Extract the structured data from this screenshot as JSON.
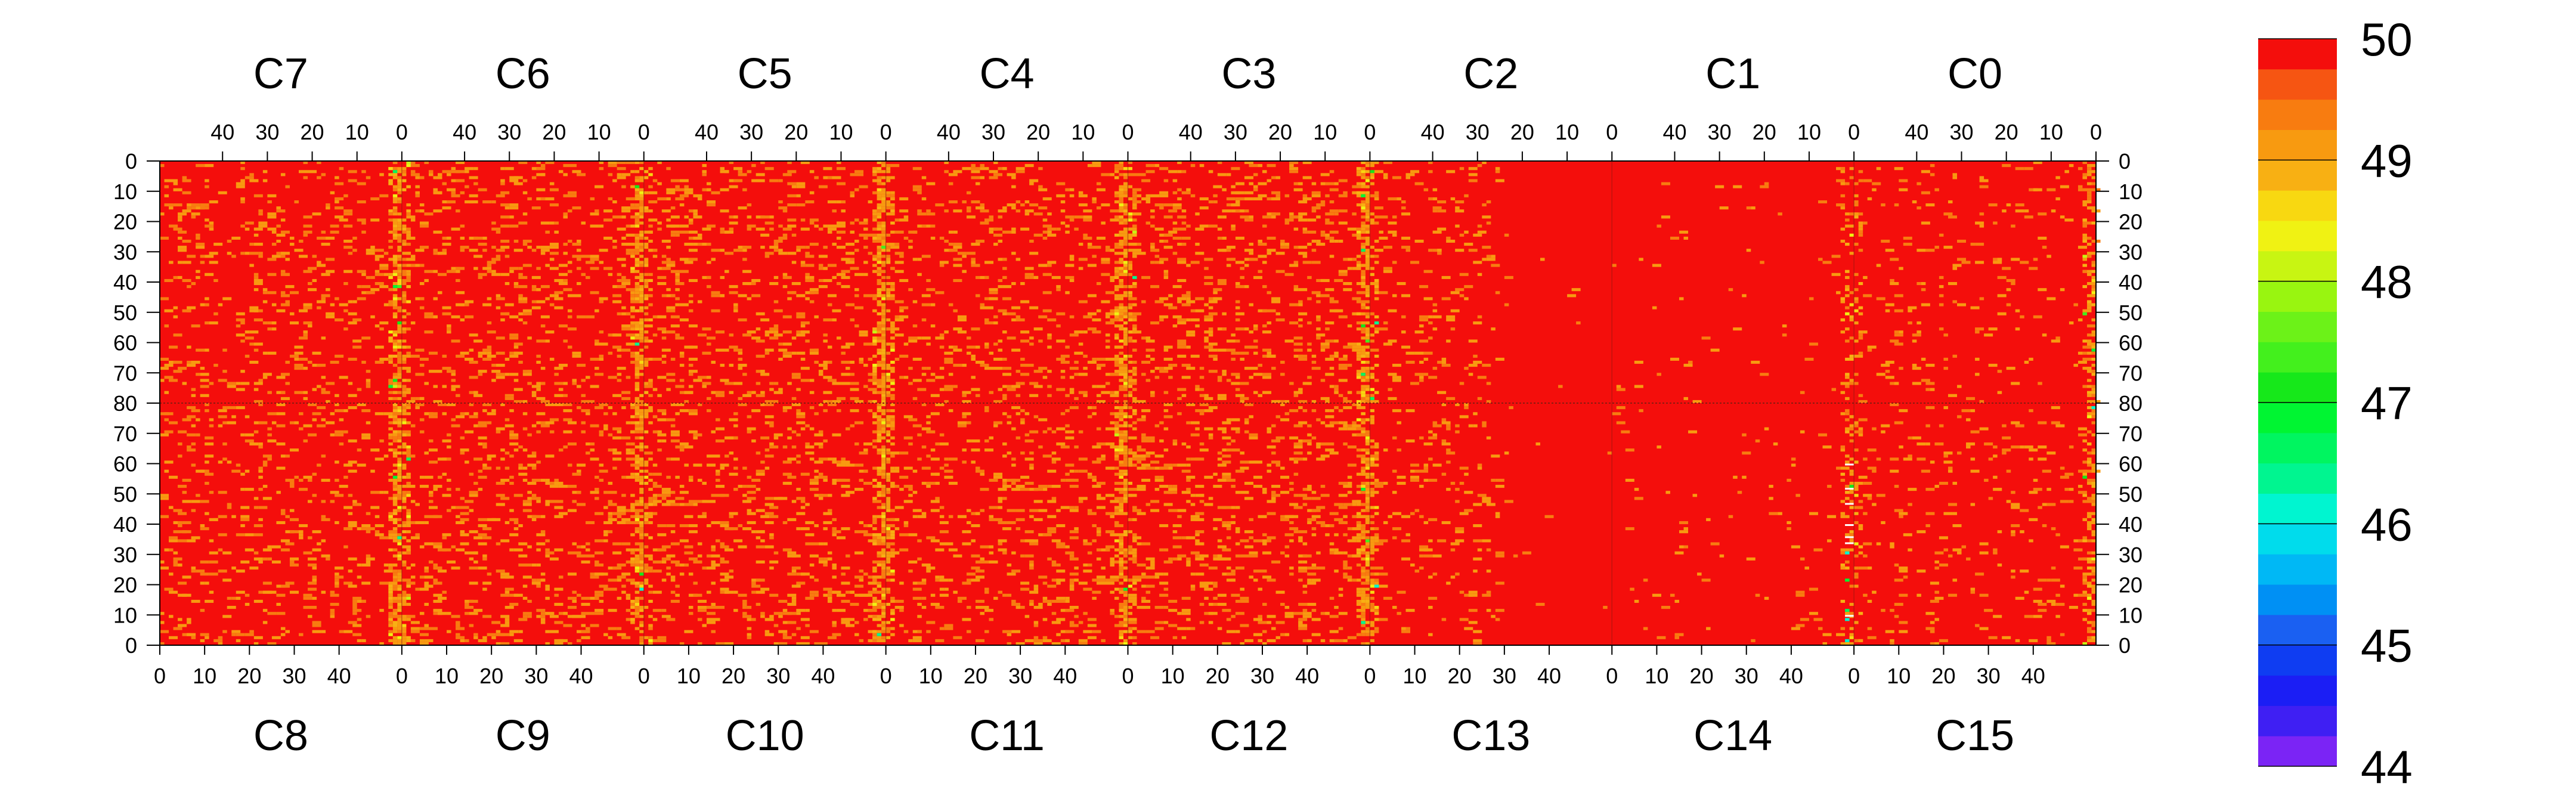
{
  "chart_data": {
    "type": "heatmap",
    "title": "",
    "top_channels": [
      "C7",
      "C6",
      "C5",
      "C4",
      "C3",
      "C2",
      "C1",
      "C0"
    ],
    "bottom_channels": [
      "C8",
      "C9",
      "C10",
      "C11",
      "C12",
      "C13",
      "C14",
      "C15"
    ],
    "cols_per_channel": 54,
    "rows_per_half": 80,
    "top_x_ticks": [
      "40",
      "30",
      "20",
      "10",
      "0"
    ],
    "bottom_x_ticks": [
      "0",
      "10",
      "20",
      "30",
      "40"
    ],
    "y_ticks_top_half": [
      "0",
      "10",
      "20",
      "30",
      "40",
      "50",
      "60",
      "70",
      "80"
    ],
    "y_ticks_bottom_half": [
      "70",
      "60",
      "50",
      "40",
      "30",
      "20",
      "10",
      "0"
    ],
    "colorbar": {
      "min": 44,
      "max": 50,
      "tick_labels": [
        "50",
        "49",
        "48",
        "47",
        "46",
        "45",
        "44"
      ],
      "tick_values": [
        50,
        49,
        48,
        47,
        46,
        45,
        44
      ],
      "colors": [
        "#7b24f5",
        "#3f1ff3",
        "#1b1ef5",
        "#0f3df2",
        "#1a60f2",
        "#0090f4",
        "#00b8f5",
        "#00dcec",
        "#00f5d0",
        "#00f590",
        "#00f560",
        "#00f532",
        "#16e81a",
        "#43f01d",
        "#6cf218",
        "#99f510",
        "#c8f512",
        "#f0f213",
        "#f8d811",
        "#f8b013",
        "#f89a10",
        "#f87c10",
        "#f65512",
        "#f40e0c"
      ]
    },
    "base_value": 50,
    "typical_low_value": 49,
    "columns_with_lowered_values": [
      "C7/C8 boundary near 0",
      "C6/C9 boundary near 0",
      "C5/C10 boundary near 0",
      "C4/C11 boundary near 0",
      "C3/C12 boundary near 0",
      "C0/C15 right edge"
    ],
    "note_region_mostly_uniform": "C1/C14 and right part of C2/C13 mostly at 50"
  }
}
